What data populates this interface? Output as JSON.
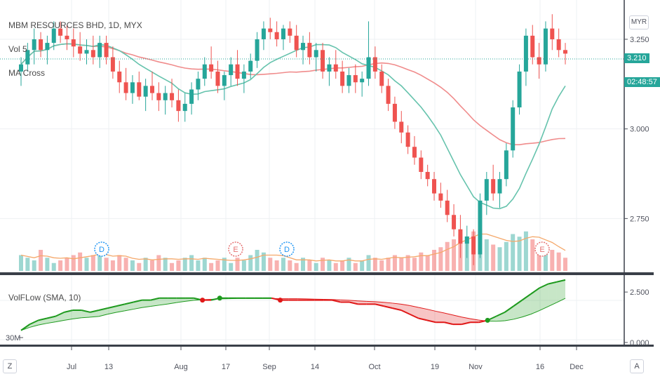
{
  "legend": {
    "title": "MBM RESOURCES BHD, 1D, MYX",
    "vol": "Vol 5",
    "ma": "MA Cross",
    "indicator": "VolFLow (SMA, 10)"
  },
  "currency": "MYR",
  "price_axis": {
    "ticks": [
      "3.250",
      "3.000",
      "2.750"
    ],
    "current": "3.210",
    "countdown": "02:48:57"
  },
  "ind_axis": {
    "ticks": [
      "2.500",
      "0.000"
    ],
    "left_label": "30M"
  },
  "time_axis": {
    "ticks": [
      "Jul",
      "13",
      "Aug",
      "17",
      "Sep",
      "14",
      "Oct",
      "19",
      "Nov",
      "16",
      "Dec"
    ]
  },
  "corner": {
    "left": "Z",
    "right": "A"
  },
  "events": [
    "D",
    "E",
    "D",
    "E"
  ],
  "colors": {
    "up": "#26a69a",
    "down": "#ef5350",
    "ma_fast": "#66c3ad",
    "ma_slow": "#f08c8c",
    "vol_ma": "#f5a86a",
    "flow_up": "#1e9a1e",
    "flow_down": "#e01818",
    "accent": "#2196f3"
  },
  "chart_data": {
    "type": "candlestick",
    "title": "MBM RESOURCES BHD, 1D, MYX",
    "ylim": [
      2.6,
      3.34
    ],
    "ohlc": [
      [
        3.16,
        3.2,
        3.12,
        3.18
      ],
      [
        3.18,
        3.24,
        3.16,
        3.22
      ],
      [
        3.22,
        3.28,
        3.18,
        3.25
      ],
      [
        3.25,
        3.27,
        3.2,
        3.22
      ],
      [
        3.22,
        3.26,
        3.18,
        3.24
      ],
      [
        3.24,
        3.3,
        3.22,
        3.28
      ],
      [
        3.28,
        3.3,
        3.24,
        3.26
      ],
      [
        3.26,
        3.29,
        3.22,
        3.25
      ],
      [
        3.25,
        3.28,
        3.2,
        3.23
      ],
      [
        3.23,
        3.27,
        3.19,
        3.21
      ],
      [
        3.21,
        3.25,
        3.18,
        3.22
      ],
      [
        3.22,
        3.26,
        3.18,
        3.2
      ],
      [
        3.2,
        3.26,
        3.17,
        3.24
      ],
      [
        3.24,
        3.26,
        3.18,
        3.2
      ],
      [
        3.2,
        3.23,
        3.14,
        3.16
      ],
      [
        3.16,
        3.19,
        3.1,
        3.13
      ],
      [
        3.13,
        3.17,
        3.08,
        3.1
      ],
      [
        3.1,
        3.15,
        3.07,
        3.13
      ],
      [
        3.13,
        3.16,
        3.08,
        3.09
      ],
      [
        3.09,
        3.14,
        3.05,
        3.12
      ],
      [
        3.12,
        3.16,
        3.08,
        3.1
      ],
      [
        3.1,
        3.13,
        3.05,
        3.08
      ],
      [
        3.08,
        3.12,
        3.04,
        3.1
      ],
      [
        3.1,
        3.14,
        3.06,
        3.08
      ],
      [
        3.08,
        3.11,
        3.02,
        3.05
      ],
      [
        3.05,
        3.1,
        3.02,
        3.07
      ],
      [
        3.07,
        3.13,
        3.04,
        3.11
      ],
      [
        3.11,
        3.16,
        3.08,
        3.14
      ],
      [
        3.14,
        3.2,
        3.12,
        3.18
      ],
      [
        3.18,
        3.23,
        3.14,
        3.16
      ],
      [
        3.16,
        3.19,
        3.1,
        3.12
      ],
      [
        3.12,
        3.16,
        3.08,
        3.15
      ],
      [
        3.15,
        3.2,
        3.12,
        3.18
      ],
      [
        3.18,
        3.22,
        3.12,
        3.14
      ],
      [
        3.14,
        3.18,
        3.1,
        3.16
      ],
      [
        3.16,
        3.21,
        3.14,
        3.19
      ],
      [
        3.19,
        3.27,
        3.17,
        3.25
      ],
      [
        3.25,
        3.3,
        3.22,
        3.28
      ],
      [
        3.28,
        3.31,
        3.25,
        3.27
      ],
      [
        3.27,
        3.3,
        3.23,
        3.25
      ],
      [
        3.25,
        3.29,
        3.22,
        3.28
      ],
      [
        3.28,
        3.3,
        3.24,
        3.26
      ],
      [
        3.26,
        3.29,
        3.2,
        3.22
      ],
      [
        3.22,
        3.26,
        3.18,
        3.24
      ],
      [
        3.24,
        3.27,
        3.18,
        3.2
      ],
      [
        3.2,
        3.24,
        3.16,
        3.22
      ],
      [
        3.22,
        3.24,
        3.14,
        3.16
      ],
      [
        3.16,
        3.2,
        3.12,
        3.18
      ],
      [
        3.18,
        3.22,
        3.14,
        3.16
      ],
      [
        3.16,
        3.19,
        3.1,
        3.12
      ],
      [
        3.12,
        3.17,
        3.1,
        3.15
      ],
      [
        3.15,
        3.18,
        3.1,
        3.13
      ],
      [
        3.13,
        3.16,
        3.09,
        3.14
      ],
      [
        3.14,
        3.3,
        3.12,
        3.2
      ],
      [
        3.2,
        3.23,
        3.14,
        3.16
      ],
      [
        3.16,
        3.18,
        3.1,
        3.12
      ],
      [
        3.12,
        3.14,
        3.05,
        3.07
      ],
      [
        3.07,
        3.09,
        3.0,
        3.02
      ],
      [
        3.02,
        3.05,
        2.96,
        2.99
      ],
      [
        2.99,
        3.01,
        2.93,
        2.95
      ],
      [
        2.95,
        2.98,
        2.9,
        2.92
      ],
      [
        2.92,
        2.94,
        2.86,
        2.88
      ],
      [
        2.88,
        2.9,
        2.84,
        2.86
      ],
      [
        2.86,
        2.88,
        2.8,
        2.82
      ],
      [
        2.82,
        2.85,
        2.78,
        2.8
      ],
      [
        2.8,
        2.83,
        2.74,
        2.76
      ],
      [
        2.76,
        2.79,
        2.7,
        2.72
      ],
      [
        2.72,
        2.76,
        2.64,
        2.68
      ],
      [
        2.68,
        2.73,
        2.64,
        2.7
      ],
      [
        2.7,
        2.72,
        2.62,
        2.65
      ],
      [
        2.65,
        2.82,
        2.64,
        2.8
      ],
      [
        2.8,
        2.88,
        2.76,
        2.86
      ],
      [
        2.86,
        2.9,
        2.8,
        2.82
      ],
      [
        2.82,
        2.88,
        2.78,
        2.86
      ],
      [
        2.86,
        2.96,
        2.84,
        2.94
      ],
      [
        2.94,
        3.08,
        2.92,
        3.06
      ],
      [
        3.06,
        3.18,
        3.04,
        3.16
      ],
      [
        3.16,
        3.28,
        3.12,
        3.26
      ],
      [
        3.26,
        3.29,
        3.18,
        3.2
      ],
      [
        3.2,
        3.24,
        3.14,
        3.18
      ],
      [
        3.18,
        3.3,
        3.16,
        3.28
      ],
      [
        3.28,
        3.32,
        3.22,
        3.25
      ],
      [
        3.25,
        3.28,
        3.2,
        3.22
      ],
      [
        3.22,
        3.24,
        3.18,
        3.21
      ]
    ],
    "volume": [
      6,
      5,
      4,
      8,
      5,
      3,
      4,
      5,
      6,
      7,
      5,
      6,
      8,
      5,
      4,
      6,
      5,
      4,
      3,
      5,
      4,
      6,
      5,
      3,
      4,
      5,
      6,
      4,
      5,
      3,
      4,
      5,
      3,
      5,
      4,
      6,
      8,
      7,
      5,
      4,
      5,
      4,
      3,
      5,
      4,
      3,
      5,
      4,
      3,
      4,
      5,
      3,
      4,
      6,
      5,
      4,
      5,
      6,
      5,
      6,
      5,
      7,
      6,
      8,
      9,
      11,
      12,
      14,
      13,
      15,
      16,
      12,
      10,
      9,
      11,
      14,
      13,
      15,
      12,
      10,
      9,
      8,
      7,
      5
    ],
    "flow": [
      0.6,
      0.9,
      1.1,
      1.2,
      1.3,
      1.5,
      1.6,
      1.6,
      1.5,
      1.6,
      1.7,
      1.8,
      1.9,
      2.0,
      2.1,
      2.1,
      2.2,
      2.2,
      2.2,
      2.2,
      2.2,
      2.1,
      2.1,
      2.2,
      2.2,
      2.2,
      2.2,
      2.2,
      2.2,
      2.2,
      2.1,
      2.1,
      2.1,
      2.1,
      2.1,
      2.1,
      2.1,
      2.0,
      2.0,
      1.9,
      1.9,
      1.9,
      1.8,
      1.7,
      1.6,
      1.4,
      1.2,
      1.1,
      1.0,
      1.0,
      0.9,
      0.9,
      1.0,
      1.0,
      1.1,
      1.3,
      1.5,
      1.8,
      2.1,
      2.4,
      2.7,
      2.9,
      3.0,
      3.1
    ],
    "xlabels": [
      "Jul",
      "13",
      "Aug",
      "17",
      "Sep",
      "14",
      "Oct",
      "19",
      "Nov",
      "16",
      "Dec"
    ]
  }
}
